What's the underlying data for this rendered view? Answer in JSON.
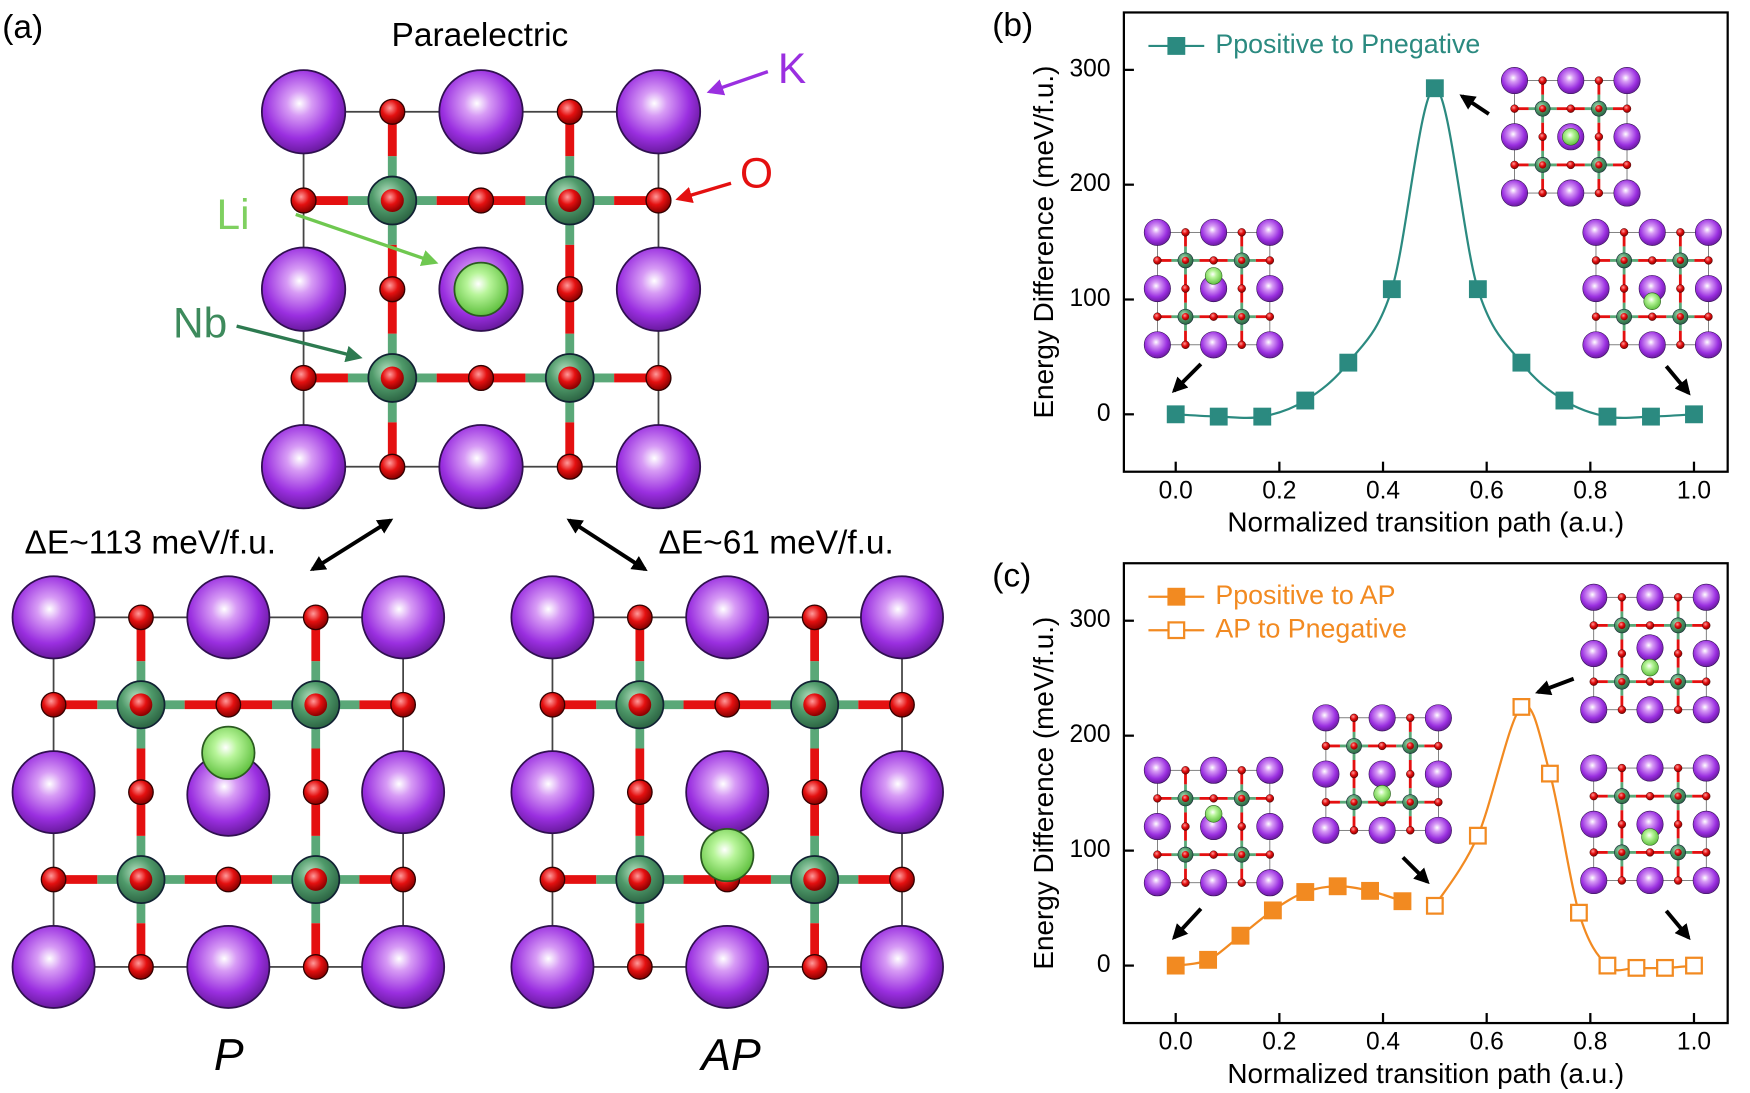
{
  "panel_a": {
    "label": "(a)",
    "title": "Paraelectric",
    "atom_K": "K",
    "atom_O": "O",
    "atom_Li": "Li",
    "atom_Nb": "Nb",
    "energy_P": "ΔE~113 meV/f.u.",
    "energy_AP": "ΔE~61 meV/f.u.",
    "phase_P": "P",
    "phase_AP": "AP"
  },
  "chart_data": [
    {
      "type": "line",
      "panel_label": "(b)",
      "x_label": "Normalized transition path (a.u.)",
      "y_label": "Energy Difference (meV/f.u.)",
      "xlim": [
        -0.1,
        1.065
      ],
      "ylim": [
        -50,
        350
      ],
      "xticks": [
        {
          "value": 0,
          "label": "0.0"
        },
        0.2,
        0.4,
        0.6,
        0.8,
        {
          "value": 1,
          "label": "1.0"
        }
      ],
      "yticks": [
        0,
        100,
        200,
        300
      ],
      "legend": "upper left",
      "series": [
        {
          "name": "Ppositive to Pnegative",
          "color": "#2b8a80",
          "marker": "square-filled",
          "x": [
            0,
            0.083,
            0.167,
            0.25,
            0.333,
            0.417,
            0.5,
            0.583,
            0.667,
            0.75,
            0.833,
            0.917,
            1.0
          ],
          "values": [
            0,
            -2,
            -2,
            12,
            45,
            109,
            284,
            109,
            45,
            12,
            -2,
            -2,
            0
          ]
        }
      ]
    },
    {
      "type": "line",
      "panel_label": "(c)",
      "x_label": "Normalized transition path (a.u.)",
      "y_label": "Energy Difference (meV/f.u.)",
      "xlim": [
        -0.1,
        1.065
      ],
      "ylim": [
        -50,
        350
      ],
      "xticks": [
        {
          "value": 0,
          "label": "0.0"
        },
        0.2,
        0.4,
        0.6,
        0.8,
        {
          "value": 1,
          "label": "1.0"
        }
      ],
      "yticks": [
        0,
        100,
        200,
        300
      ],
      "legend": "upper left",
      "series": [
        {
          "name": "Ppositive to AP",
          "color": "#f28a21",
          "marker": "square-filled",
          "x": [
            0,
            0.0625,
            0.125,
            0.1875,
            0.25,
            0.3125,
            0.375,
            0.4375
          ],
          "values": [
            0,
            5,
            26,
            48,
            64,
            69,
            65,
            56
          ]
        },
        {
          "name": "AP to Pnegative",
          "color": "#f28a21",
          "marker": "square-open",
          "x": [
            0.5,
            0.583,
            0.667,
            0.722,
            0.778,
            0.833,
            0.889,
            0.944,
            1.0
          ],
          "values": [
            52,
            113,
            225,
            167,
            46,
            0,
            -2,
            -2,
            0
          ]
        }
      ]
    }
  ]
}
